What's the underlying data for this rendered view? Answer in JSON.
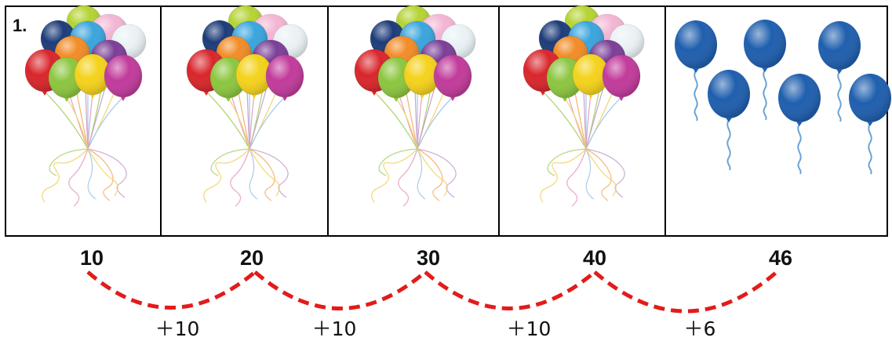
{
  "question_number": "1.",
  "panels": [
    {
      "kind": "bunch",
      "balloons": 10
    },
    {
      "kind": "bunch",
      "balloons": 10
    },
    {
      "kind": "bunch",
      "balloons": 10
    },
    {
      "kind": "bunch",
      "balloons": 10
    },
    {
      "kind": "singles",
      "balloons": 6
    }
  ],
  "totals": [
    "10",
    "20",
    "30",
    "40",
    "46"
  ],
  "steps": [
    "＋10",
    "＋10",
    "＋10",
    "＋6"
  ],
  "colors": {
    "arc": "#e31b1b",
    "single_balloon": "#1f5fae",
    "bunch": [
      "#d8262c",
      "#8cc63f",
      "#f4d21b",
      "#c13b9b",
      "#7b3f97",
      "#f28c28",
      "#3aa5dd",
      "#1d3c7a",
      "#f2b5d4",
      "#eaf2f5",
      "#b5d334"
    ]
  },
  "icons": [
    "balloon-bunch-icon",
    "blue-balloon-icon"
  ]
}
